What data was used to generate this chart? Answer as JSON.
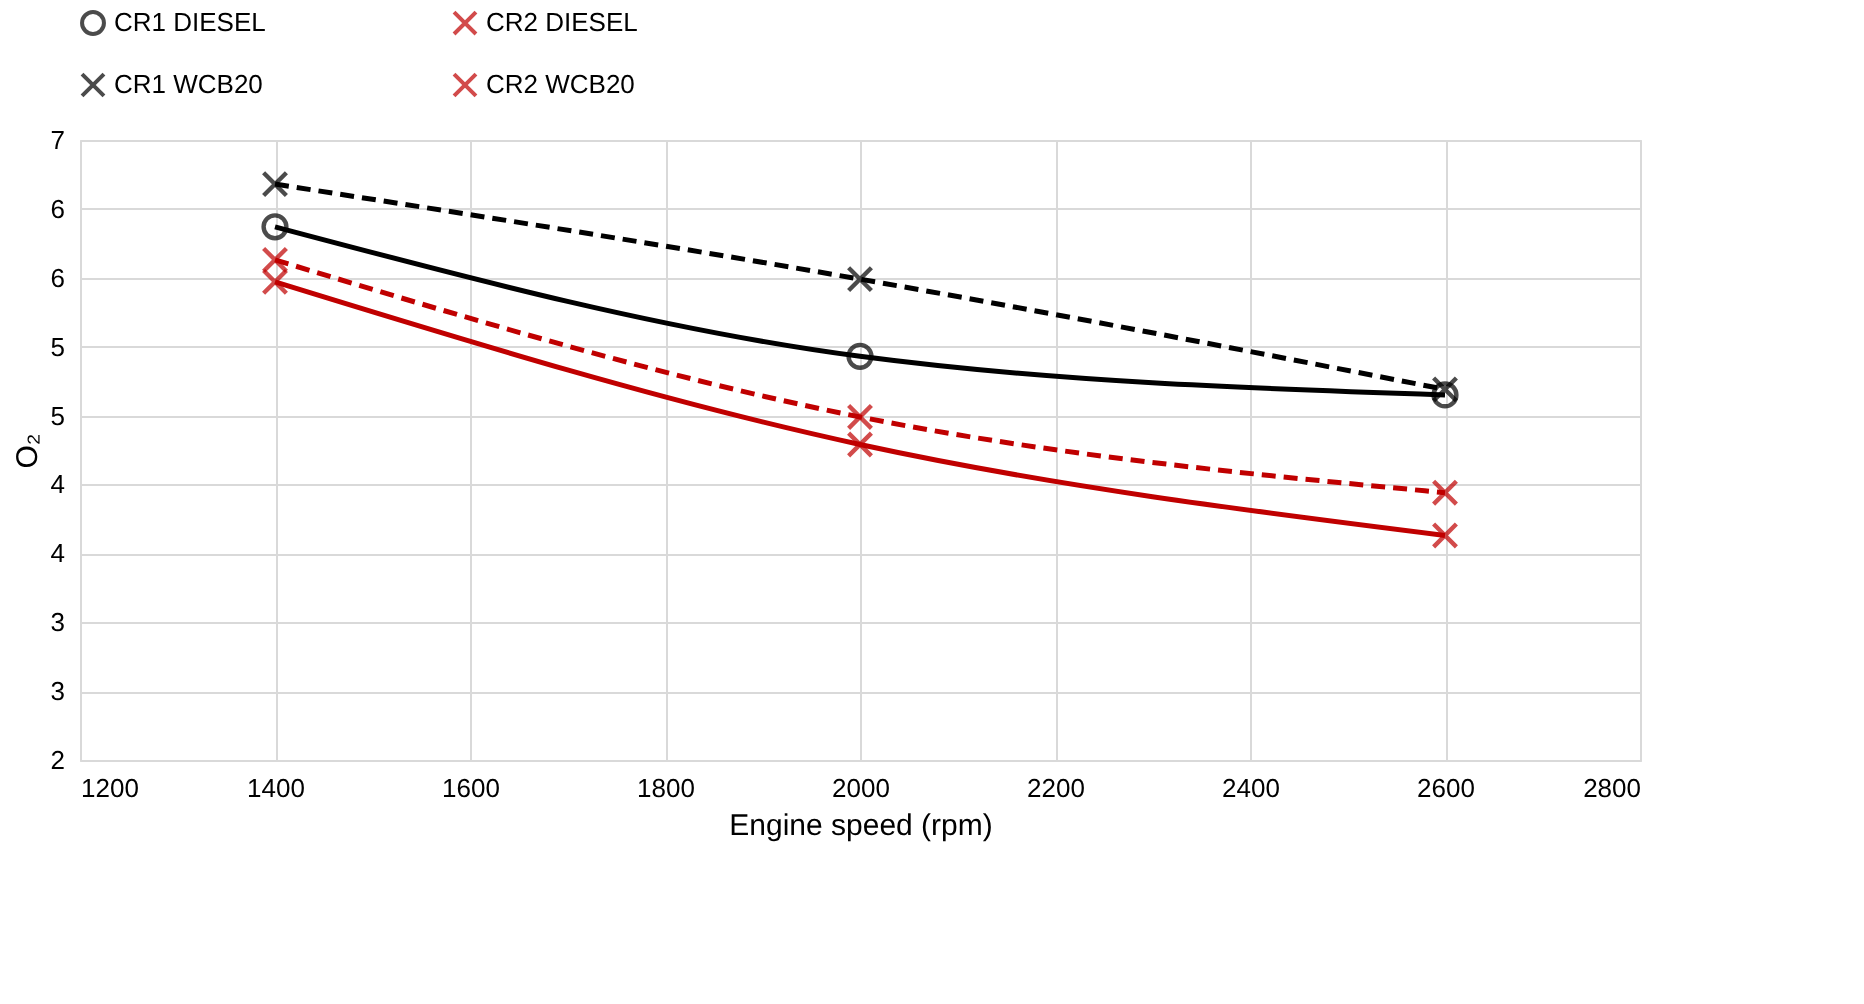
{
  "chart_data": {
    "type": "line",
    "xlabel": "Engine speed (rpm)",
    "ylabel": "O₂",
    "x": [
      1400,
      2000,
      2600
    ],
    "series": [
      {
        "name": "CR1 DIESEL",
        "color": "#000000",
        "values": [
          5.87,
          4.93,
          4.65
        ],
        "marker": "circle",
        "line_style": "solid"
      },
      {
        "name": "CR2 DIESEL",
        "color": "#c00000",
        "values": [
          5.47,
          4.29,
          3.63
        ],
        "marker": "cross",
        "line_style": "solid"
      },
      {
        "name": "CR1 WCB20",
        "color": "#000000",
        "values": [
          6.18,
          5.49,
          4.69
        ],
        "marker": "cross",
        "line_style": "dashed"
      },
      {
        "name": "CR2 WCB20",
        "color": "#c00000",
        "values": [
          5.63,
          4.49,
          3.94
        ],
        "marker": "cross",
        "line_style": "dashed"
      }
    ],
    "xlim": [
      1200,
      2800
    ],
    "xticks": [
      1200,
      1400,
      1600,
      1800,
      2000,
      2200,
      2400,
      2600,
      2800
    ],
    "ylim": [
      2,
      6.5
    ],
    "yticks": [
      2,
      {
        "value": 2.5,
        "label": "3"
      },
      3,
      {
        "value": 3.5,
        "label": "4"
      },
      4,
      {
        "value": 4.5,
        "label": "5"
      },
      5,
      {
        "value": 5.5,
        "label": "6"
      },
      6,
      {
        "value": 6.5,
        "label": "7"
      }
    ],
    "grid": true,
    "legend": "top"
  }
}
